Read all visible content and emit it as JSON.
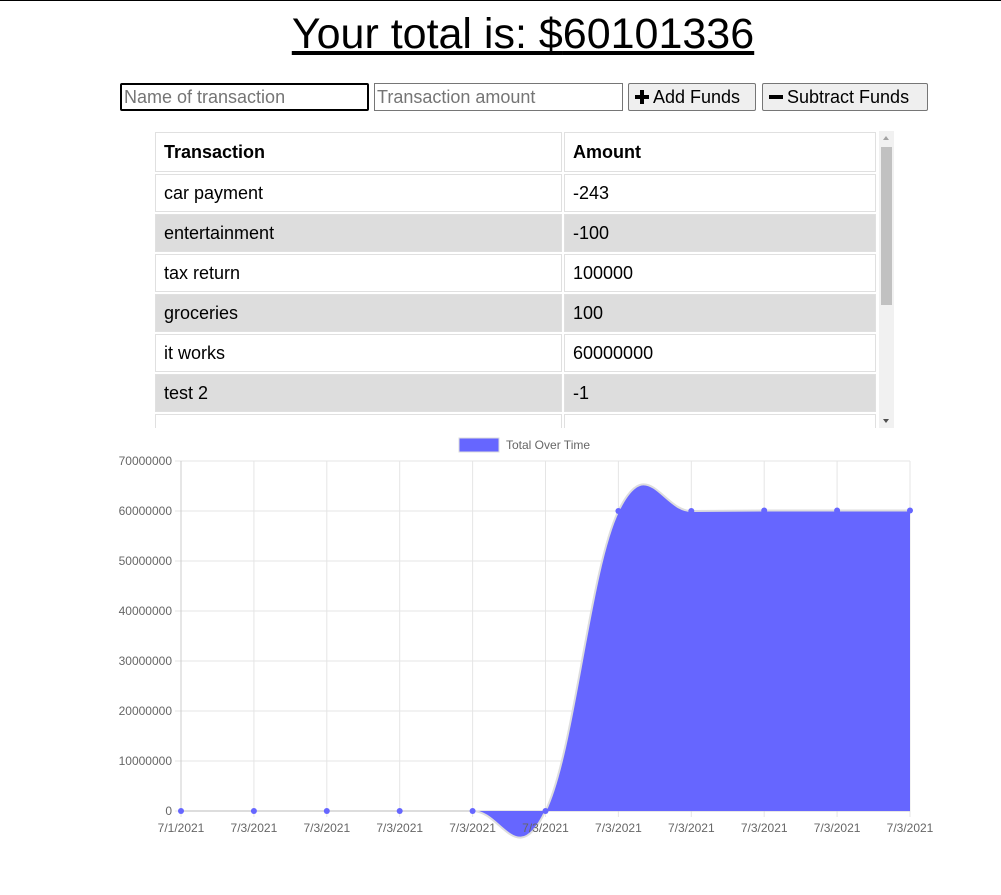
{
  "header": {
    "total_prefix": "Your total is: $",
    "total_value": "60101336"
  },
  "form": {
    "name_placeholder": "Name of transaction",
    "amount_placeholder": "Transaction amount",
    "add_label": "Add Funds",
    "subtract_label": "Subtract Funds",
    "add_icon": "plus-icon",
    "subtract_icon": "minus-icon"
  },
  "table": {
    "headers": [
      "Transaction",
      "Amount"
    ],
    "rows": [
      {
        "name": "car payment",
        "amount": "-243"
      },
      {
        "name": "entertainment",
        "amount": "-100"
      },
      {
        "name": "tax return",
        "amount": "100000"
      },
      {
        "name": "groceries",
        "amount": "100"
      },
      {
        "name": "it works",
        "amount": "60000000"
      },
      {
        "name": "test 2",
        "amount": "-1"
      },
      {
        "name": "",
        "amount": ""
      }
    ]
  },
  "chart_data": {
    "type": "area",
    "legend_position": "top",
    "grid": true,
    "x": [
      "7/1/2021",
      "7/3/2021",
      "7/3/2021",
      "7/3/2021",
      "7/3/2021",
      "7/3/2021",
      "7/3/2021",
      "7/3/2021",
      "7/3/2021",
      "7/3/2021",
      "7/3/2021"
    ],
    "series": [
      {
        "name": "Total Over Time",
        "values": [
          0,
          0,
          0,
          0,
          0,
          0,
          60000000,
          60000000,
          60100000,
          60101000,
          60101336
        ]
      }
    ],
    "ylim": [
      0,
      70000000
    ],
    "yticks": [
      0,
      10000000,
      20000000,
      30000000,
      40000000,
      50000000,
      60000000,
      70000000
    ],
    "colors": {
      "fill": "#6666ff",
      "point": "#6666ff",
      "line": "#dddddd"
    }
  }
}
